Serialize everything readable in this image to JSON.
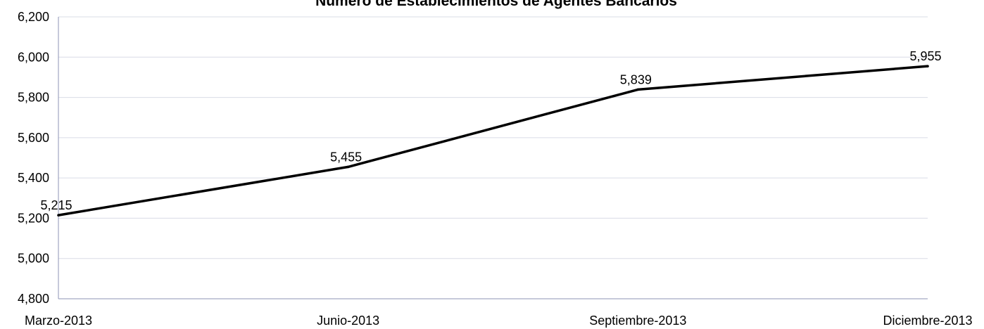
{
  "chart_data": {
    "type": "line",
    "title": "Número de Establecimientos de Agentes Bancarios",
    "xlabel": "",
    "ylabel": "",
    "categories": [
      "Marzo-2013",
      "Junio-2013",
      "Septiembre-2013",
      "Diciembre-2013"
    ],
    "series": [
      {
        "values": [
          5215,
          5455,
          5839,
          5955
        ],
        "labels": [
          "5,215",
          "5,455",
          "5,839",
          "5,955"
        ]
      }
    ],
    "ylim": [
      4800,
      6200
    ],
    "yticks": [
      4800,
      5000,
      5200,
      5400,
      5600,
      5800,
      6000,
      6200
    ],
    "ytick_labels": [
      "4,800",
      "5,000",
      "5,200",
      "5,400",
      "5,600",
      "5,800",
      "6,000",
      "6,200"
    ],
    "grid": true,
    "legend": "none",
    "colors": {
      "line": "#000000",
      "grid": "#d9dce6",
      "axis": "#8c93b5"
    }
  }
}
